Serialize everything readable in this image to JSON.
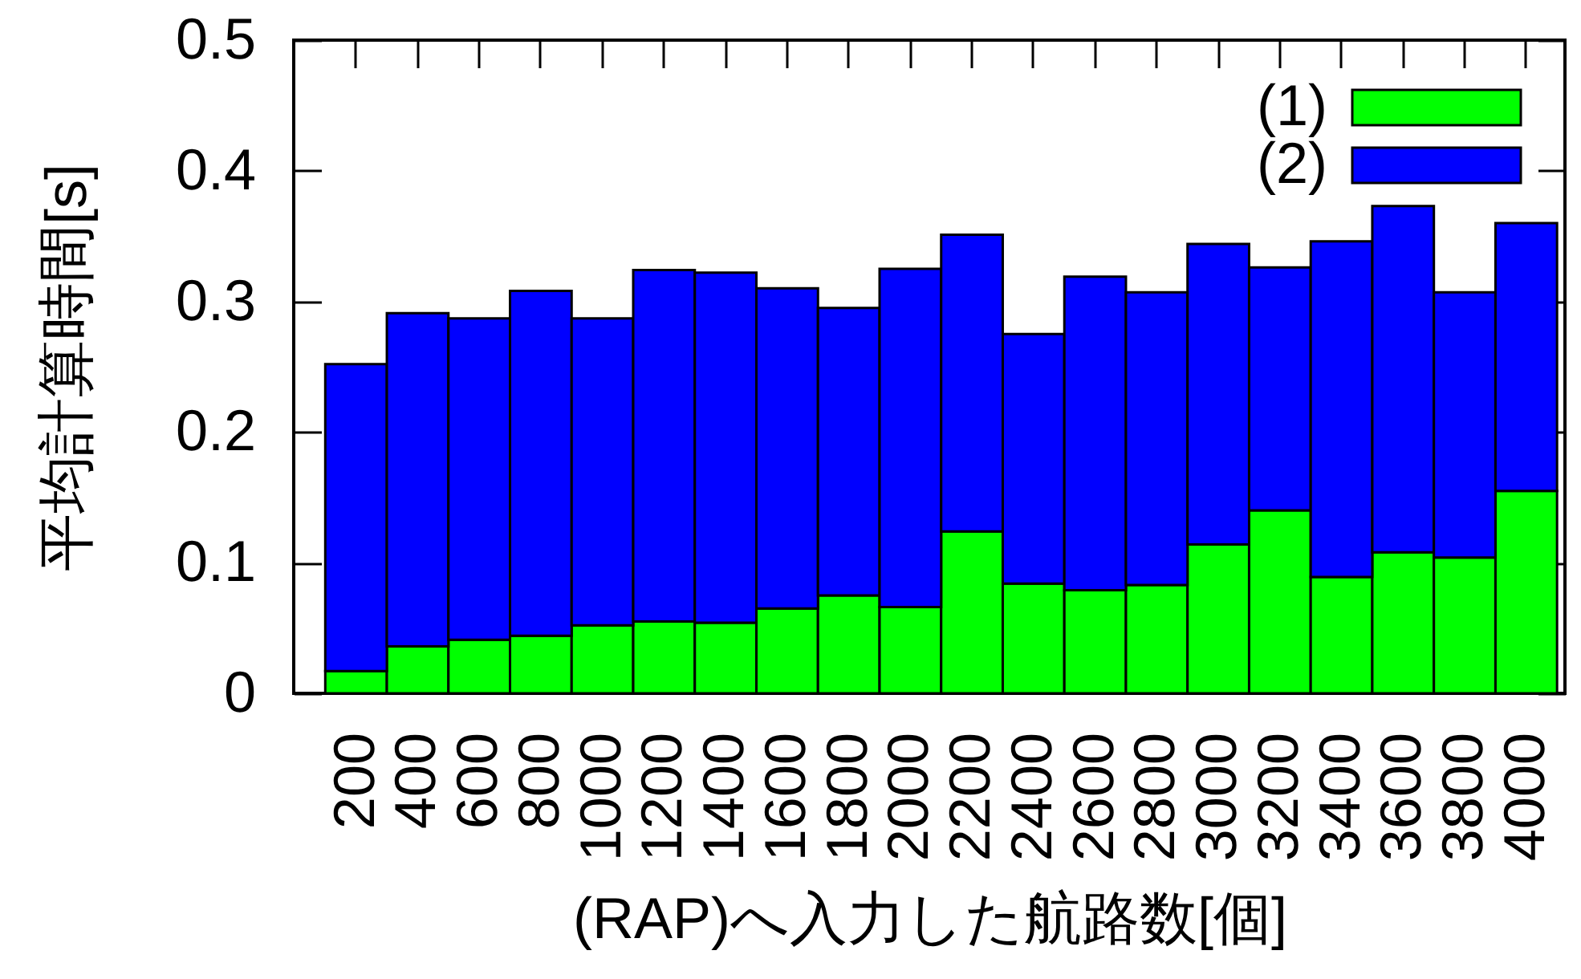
{
  "chart_data": {
    "type": "bar",
    "stacked": true,
    "xlabel": "(RAP)へ入力した航路数[個]",
    "ylabel": "平均計算時間[s]",
    "categories": [
      "200",
      "400",
      "600",
      "800",
      "1000",
      "1200",
      "1400",
      "1600",
      "1800",
      "2000",
      "2200",
      "2400",
      "2600",
      "2800",
      "3000",
      "3200",
      "3400",
      "3600",
      "3800",
      "4000"
    ],
    "series": [
      {
        "name": "(1)",
        "color": "#00ff00",
        "values": [
          0.017,
          0.036,
          0.041,
          0.044,
          0.052,
          0.055,
          0.054,
          0.065,
          0.075,
          0.066,
          0.124,
          0.084,
          0.079,
          0.083,
          0.114,
          0.14,
          0.089,
          0.108,
          0.104,
          0.155
        ]
      },
      {
        "name": "(2)",
        "color": "#0000ff",
        "values": [
          0.235,
          0.255,
          0.246,
          0.264,
          0.235,
          0.269,
          0.268,
          0.245,
          0.22,
          0.259,
          0.227,
          0.191,
          0.24,
          0.224,
          0.23,
          0.186,
          0.257,
          0.265,
          0.203,
          0.205
        ]
      }
    ],
    "ylim": [
      0,
      0.5
    ],
    "yticks": [
      0,
      0.1,
      0.2,
      0.3,
      0.4,
      0.5
    ],
    "legend": "top right"
  }
}
